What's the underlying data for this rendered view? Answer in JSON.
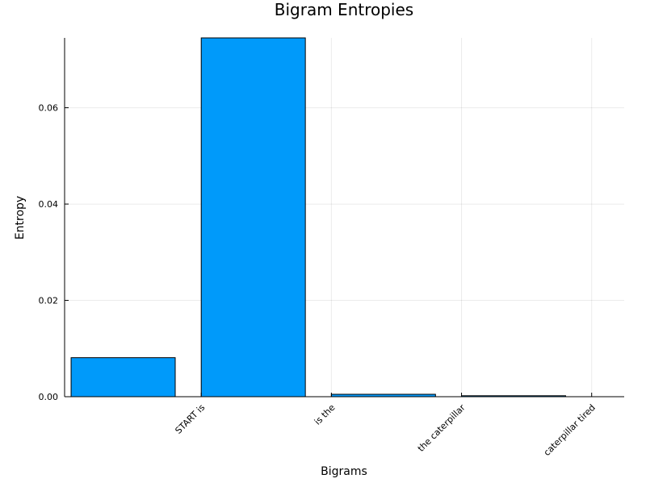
{
  "chart_data": {
    "type": "bar",
    "title": "Bigram Entropies",
    "xlabel": "Bigrams",
    "ylabel": "Entropy",
    "categories": [
      "START is",
      "is the",
      "the caterpillar",
      "caterpillar tired"
    ],
    "values": [
      0.0081,
      0.0745,
      0.0005,
      0.0002
    ],
    "ylim": [
      0,
      0.0745
    ],
    "yticks": [
      0.0,
      0.02,
      0.04,
      0.06
    ],
    "ytick_labels": [
      "0.00",
      "0.02",
      "0.04",
      "0.06"
    ],
    "grid": true,
    "legend": "none",
    "bar_color": "#009AFA"
  }
}
